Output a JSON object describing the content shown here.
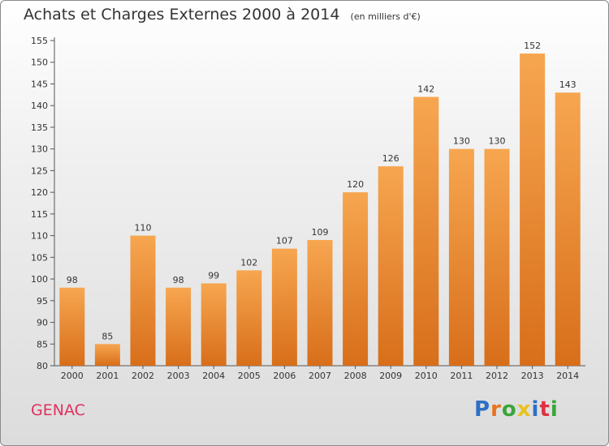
{
  "header": {
    "title": "Achats et Charges Externes 2000 à 2014",
    "unit": "(en milliers d'€)"
  },
  "footer": {
    "commune": "GENAC",
    "logo": {
      "text": "Proxiti",
      "letters": [
        {
          "char": "P",
          "color": "#2d6fc4"
        },
        {
          "char": "r",
          "color": "#e8731c"
        },
        {
          "char": "o",
          "color": "#3aa53a"
        },
        {
          "char": "x",
          "color": "#e8c21c"
        },
        {
          "char": "i",
          "color": "#2d6fc4"
        },
        {
          "char": "t",
          "color": "#e03040"
        },
        {
          "char": "i",
          "color": "#3aa53a"
        }
      ]
    }
  },
  "chart_data": {
    "type": "bar",
    "title": "Achats et Charges Externes 2000 à 2014",
    "subtitle": "(en milliers d'€)",
    "xlabel": "",
    "ylabel": "",
    "categories": [
      "2000",
      "2001",
      "2002",
      "2003",
      "2004",
      "2005",
      "2006",
      "2007",
      "2008",
      "2009",
      "2010",
      "2011",
      "2012",
      "2013",
      "2014"
    ],
    "values": [
      98,
      85,
      110,
      98,
      99,
      102,
      107,
      109,
      120,
      126,
      142,
      130,
      130,
      152,
      143
    ],
    "ylim": [
      80,
      155
    ],
    "yticks": [
      80,
      85,
      90,
      95,
      100,
      105,
      110,
      115,
      120,
      125,
      130,
      135,
      140,
      145,
      150,
      155
    ],
    "grid": false,
    "legend": "none",
    "colors": {
      "bar_top": "#f7a650",
      "bar_bottom": "#d86e1a",
      "axis": "#555555"
    }
  }
}
